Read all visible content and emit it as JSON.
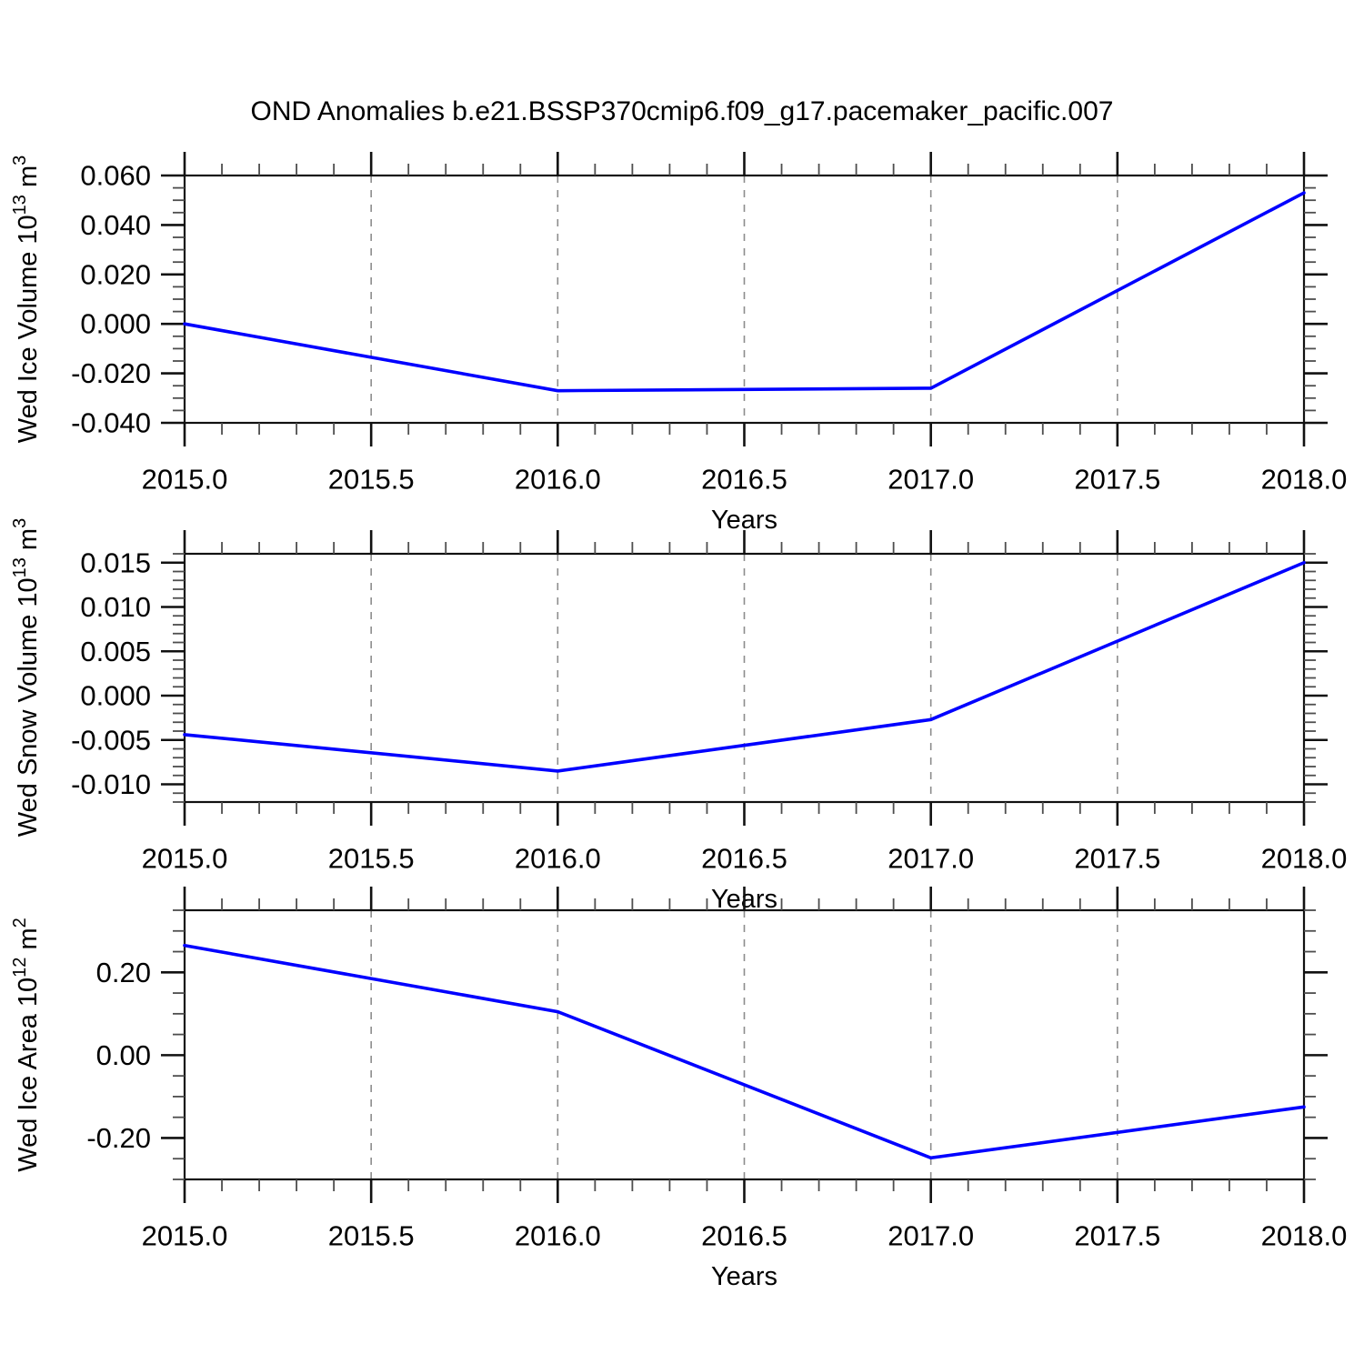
{
  "title": "OND Anomalies b.e21.BSSP370cmip6.f09_g17.pacemaker_pacific.007",
  "colors": {
    "line": "#0000ff",
    "frame": "#111111",
    "major_tick": "#111111",
    "minor_tick": "#4d4d4d",
    "grid": "#8c8c8c",
    "text": "#000000",
    "background": "#ffffff"
  },
  "chart_data": [
    {
      "type": "line",
      "name": "wed-ice-volume",
      "x": [
        2015.0,
        2016.0,
        2017.0,
        2018.0
      ],
      "y": [
        0.0,
        -0.027,
        -0.026,
        0.053
      ],
      "xlabel": "Years",
      "ylabel": "Wed Ice Volume 10^13 m^3",
      "ylabel_parts": [
        {
          "text": "Wed Ice Volume 10",
          "sup": false
        },
        {
          "text": "13",
          "sup": true
        },
        {
          "text": " m",
          "sup": false
        },
        {
          "text": "3",
          "sup": true
        }
      ],
      "xlim": [
        2015.0,
        2018.0
      ],
      "ylim": [
        -0.04,
        0.06
      ],
      "x_major_ticks": [
        2015.0,
        2015.5,
        2016.0,
        2016.5,
        2017.0,
        2017.5,
        2018.0
      ],
      "x_tick_labels": [
        "2015.0",
        "2015.5",
        "2016.0",
        "2016.5",
        "2017.0",
        "2017.5",
        "2018.0"
      ],
      "x_minor_step": 0.1,
      "y_major_ticks": [
        -0.04,
        -0.02,
        0.0,
        0.02,
        0.04,
        0.06
      ],
      "y_tick_labels": [
        "-0.040",
        "-0.020",
        "0.000",
        "0.020",
        "0.040",
        "0.060"
      ],
      "y_minor_step": 0.005,
      "grid_vertical_dashed": [
        2015.5,
        2016.0,
        2016.5,
        2017.0,
        2017.5
      ],
      "legend": "none"
    },
    {
      "type": "line",
      "name": "wed-snow-volume",
      "x": [
        2015.0,
        2016.0,
        2017.0,
        2018.0
      ],
      "y": [
        -0.0044,
        -0.0085,
        -0.0027,
        0.015
      ],
      "xlabel": "Years",
      "ylabel": "Wed Snow Volume 10^13 m^3",
      "ylabel_parts": [
        {
          "text": "Wed Snow Volume 10",
          "sup": false
        },
        {
          "text": "13",
          "sup": true
        },
        {
          "text": " m",
          "sup": false
        },
        {
          "text": "3",
          "sup": true
        }
      ],
      "xlim": [
        2015.0,
        2018.0
      ],
      "ylim": [
        -0.012,
        0.016
      ],
      "x_major_ticks": [
        2015.0,
        2015.5,
        2016.0,
        2016.5,
        2017.0,
        2017.5,
        2018.0
      ],
      "x_tick_labels": [
        "2015.0",
        "2015.5",
        "2016.0",
        "2016.5",
        "2017.0",
        "2017.5",
        "2018.0"
      ],
      "x_minor_step": 0.1,
      "y_major_ticks": [
        -0.01,
        -0.005,
        0.0,
        0.005,
        0.01,
        0.015
      ],
      "y_tick_labels": [
        "-0.010",
        "-0.005",
        "0.000",
        "0.005",
        "0.010",
        "0.015"
      ],
      "y_minor_step": 0.001,
      "grid_vertical_dashed": [
        2015.5,
        2016.0,
        2016.5,
        2017.0,
        2017.5
      ],
      "legend": "none"
    },
    {
      "type": "line",
      "name": "wed-ice-area",
      "x": [
        2015.0,
        2016.0,
        2017.0,
        2018.0
      ],
      "y": [
        0.265,
        0.105,
        -0.248,
        -0.125
      ],
      "xlabel": "Years",
      "ylabel": "Wed Ice Area 10^12 m^2",
      "ylabel_parts": [
        {
          "text": "Wed Ice Area 10",
          "sup": false
        },
        {
          "text": "12",
          "sup": true
        },
        {
          "text": " m",
          "sup": false
        },
        {
          "text": "2",
          "sup": true
        }
      ],
      "xlim": [
        2015.0,
        2018.0
      ],
      "ylim": [
        -0.3,
        0.35
      ],
      "x_major_ticks": [
        2015.0,
        2015.5,
        2016.0,
        2016.5,
        2017.0,
        2017.5,
        2018.0
      ],
      "x_tick_labels": [
        "2015.0",
        "2015.5",
        "2016.0",
        "2016.5",
        "2017.0",
        "2017.5",
        "2018.0"
      ],
      "x_minor_step": 0.1,
      "y_major_ticks": [
        -0.2,
        0.0,
        0.2
      ],
      "y_tick_labels": [
        "-0.20",
        "0.00",
        "0.20"
      ],
      "y_minor_step": 0.05,
      "grid_vertical_dashed": [
        2015.5,
        2016.0,
        2016.5,
        2017.0,
        2017.5
      ],
      "legend": "none"
    }
  ]
}
